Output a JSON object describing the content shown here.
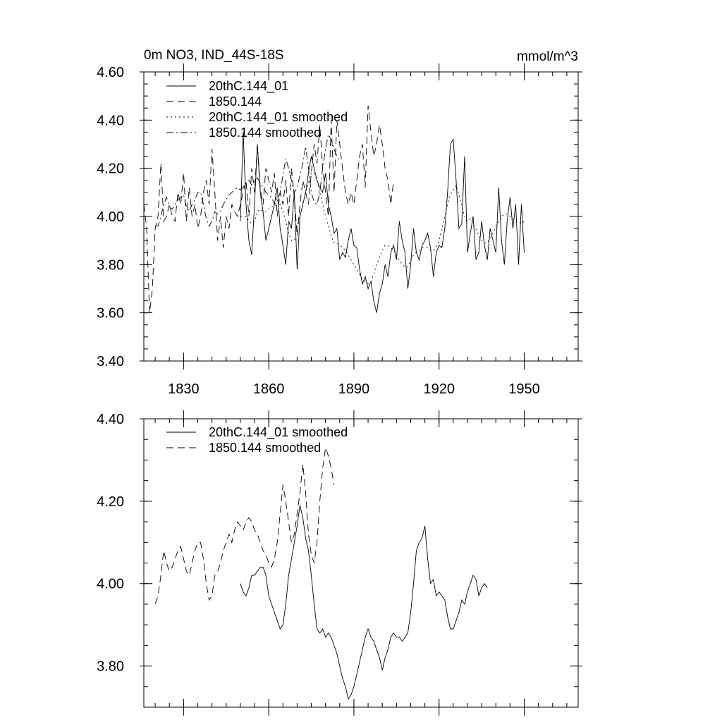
{
  "figure": {
    "title_left": "0m NO3, IND_44S-18S",
    "title_right": "mmol/m^3"
  },
  "chart_data": [
    {
      "type": "line",
      "title": "0m NO3, IND_44S-18S",
      "units": "mmol/m^3",
      "xlim": [
        1816,
        1969
      ],
      "ylim": [
        3.4,
        4.6
      ],
      "x_ticks": [
        1830,
        1860,
        1890,
        1920,
        1950
      ],
      "y_ticks": [
        3.4,
        3.6,
        3.8,
        4.0,
        4.2,
        4.4,
        4.6
      ],
      "y_tick_labels": [
        "3.40",
        "3.60",
        "3.80",
        "4.00",
        "4.20",
        "4.40",
        "4.60"
      ],
      "legend": "top-left",
      "grid": false,
      "series": [
        {
          "name": "20thC.144_01",
          "style": "solid",
          "x_start": 1850,
          "values": [
            3.98,
            4.35,
            4.05,
            3.9,
            3.84,
            4.05,
            4.3,
            4.1,
            4.02,
            3.9,
            3.95,
            4.0,
            4.05,
            4.12,
            3.95,
            3.88,
            3.8,
            3.98,
            3.95,
            4.1,
            3.78,
            4.0,
            4.05,
            4.1,
            4.18,
            4.25,
            4.2,
            4.15,
            4.12,
            4.1,
            4.18,
            4.05,
            4.0,
            3.93,
            3.95,
            3.82,
            3.85,
            3.83,
            3.9,
            3.95,
            3.88,
            3.87,
            3.78,
            3.72,
            3.75,
            3.7,
            3.73,
            3.65,
            3.6,
            3.68,
            3.72,
            3.8,
            3.75,
            3.85,
            3.88,
            3.82,
            3.98,
            3.9,
            3.85,
            3.7,
            3.8,
            3.95,
            3.85,
            3.82,
            3.88,
            3.9,
            3.93,
            3.87,
            3.75,
            3.85,
            3.88,
            3.87,
            3.95,
            4.1,
            4.3,
            4.32,
            4.15,
            3.95,
            3.97,
            4.25,
            3.85,
            3.93,
            4.0,
            3.82,
            3.85,
            3.98,
            3.88,
            3.82,
            3.95,
            3.9,
            3.85,
            4.12,
            3.9,
            3.8,
            3.98,
            4.08,
            3.95,
            4.05,
            3.8,
            4.05,
            3.85
          ]
        },
        {
          "name": "1850.144",
          "style": "dashed",
          "x_start": 1816,
          "values": [
            4.05,
            3.95,
            3.6,
            3.7,
            3.95,
            4.0,
            4.22,
            3.98,
            4.0,
            4.05,
            4.0,
            3.98,
            4.1,
            4.05,
            4.18,
            3.98,
            4.12,
            4.0,
            4.05,
            3.95,
            4.0,
            4.1,
            4.15,
            4.05,
            4.28,
            4.1,
            3.9,
            4.0,
            3.87,
            4.0,
            3.95,
            4.05,
            4.02,
            4.0,
            4.05,
            4.1,
            4.15,
            4.0,
            4.2,
            4.1,
            4.3,
            4.12,
            4.05,
            4.2,
            4.15,
            4.1,
            4.18,
            4.0,
            4.1,
            4.05,
            4.15,
            4.0,
            4.2,
            4.08,
            3.92,
            4.05,
            4.15,
            4.1,
            4.05,
            4.18,
            4.3,
            4.22,
            4.38,
            4.2,
            4.1,
            4.0,
            4.4,
            4.1,
            4.4,
            4.3,
            4.2,
            4.1,
            4.05,
            4.1,
            4.05,
            4.15,
            4.25,
            4.3,
            4.12,
            4.46,
            4.35,
            4.25,
            4.3,
            4.38,
            4.3,
            4.2,
            4.15,
            4.05,
            4.15
          ]
        },
        {
          "name": "20thC.144_01 smoothed",
          "style": "dotted",
          "x_start": 1850,
          "values": [
            4.0,
            4.0,
            4.0,
            3.98,
            3.97,
            3.98,
            4.02,
            4.03,
            4.02,
            4.02,
            4.03,
            4.04,
            4.04,
            4.05,
            4.05,
            4.02,
            3.98,
            3.93,
            3.9,
            3.9,
            3.94,
            4.0,
            4.05,
            4.1,
            4.14,
            4.18,
            4.18,
            4.15,
            4.1,
            4.05,
            4.0,
            3.96,
            3.92,
            3.89,
            3.89,
            3.88,
            3.87,
            3.86,
            3.84,
            3.82,
            3.8,
            3.78,
            3.76,
            3.74,
            3.73,
            3.72,
            3.73,
            3.76,
            3.8,
            3.83,
            3.86,
            3.88,
            3.88,
            3.87,
            3.86,
            3.84,
            3.82,
            3.8,
            3.79,
            3.79,
            3.82,
            3.84,
            3.85,
            3.86,
            3.87,
            3.87,
            3.87,
            3.86,
            3.86,
            3.87,
            3.9,
            3.95,
            4.0,
            4.05,
            4.09,
            4.11,
            4.13,
            4.09,
            4.04,
            4.0,
            3.98,
            3.99,
            3.97,
            3.95,
            3.92,
            3.9,
            3.89,
            3.89,
            3.91,
            3.93,
            3.96,
            3.98,
            4.0,
            4.01,
            4.01,
            4.0,
            3.99,
            3.98,
            3.98,
            3.97,
            3.98
          ]
        },
        {
          "name": "1850.144 smoothed",
          "style": "dashdot",
          "x_start": 1820,
          "values": [
            3.96,
            3.96,
            4.0,
            4.05,
            4.08,
            4.04,
            4.03,
            4.05,
            4.07,
            4.08,
            4.09,
            4.04,
            4.02,
            4.05,
            4.07,
            4.1,
            4.1,
            4.05,
            3.99,
            3.96,
            3.98,
            4.02,
            4.01,
            4.02,
            4.05,
            4.07,
            4.09,
            4.1,
            4.11,
            4.12,
            4.11,
            4.12,
            4.14,
            4.15,
            4.13,
            4.15,
            4.16,
            4.14,
            4.12,
            4.1,
            4.09,
            4.08,
            4.05,
            4.06,
            4.1,
            4.17,
            4.24,
            4.2,
            4.15,
            4.1,
            4.12,
            4.17,
            4.22,
            4.29,
            4.2,
            4.1,
            4.06,
            4.05,
            4.1,
            4.2,
            4.28,
            4.34,
            4.32,
            4.28,
            4.25,
            4.23
          ]
        }
      ]
    },
    {
      "type": "line",
      "xlim": [
        1816,
        1969
      ],
      "ylim": [
        3.7,
        4.4
      ],
      "x_ticks": [
        1830,
        1860,
        1890,
        1920,
        1950
      ],
      "y_ticks": [
        3.8,
        4.0,
        4.2,
        4.4
      ],
      "y_tick_labels": [
        "3.80",
        "4.00",
        "4.20",
        "4.40"
      ],
      "legend": "top-left",
      "grid": false,
      "series": [
        {
          "name": "20thC.144_01 smoothed",
          "style": "solid",
          "x_start": 1850,
          "values": [
            4.0,
            3.98,
            3.97,
            3.99,
            4.02,
            4.02,
            4.03,
            4.04,
            4.04,
            4.02,
            3.97,
            3.95,
            3.93,
            3.91,
            3.89,
            3.9,
            3.95,
            4.02,
            4.06,
            4.1,
            4.14,
            4.19,
            4.16,
            4.11,
            4.08,
            4.02,
            3.95,
            3.89,
            3.88,
            3.89,
            3.87,
            3.88,
            3.87,
            3.85,
            3.83,
            3.8,
            3.77,
            3.75,
            3.72,
            3.73,
            3.75,
            3.78,
            3.81,
            3.84,
            3.87,
            3.89,
            3.87,
            3.86,
            3.84,
            3.82,
            3.79,
            3.82,
            3.84,
            3.87,
            3.88,
            3.87,
            3.87,
            3.86,
            3.87,
            3.88,
            3.93,
            4.0,
            4.08,
            4.1,
            4.11,
            4.14,
            4.06,
            4.0,
            4.01,
            3.97,
            3.98,
            3.97,
            3.96,
            3.92,
            3.89,
            3.89,
            3.91,
            3.93,
            3.96,
            3.95,
            3.98,
            4.0,
            4.02,
            4.01,
            3.97,
            3.99,
            4.0,
            3.99
          ]
        },
        {
          "name": "1850.144 smoothed",
          "style": "dashed",
          "x_start": 1820,
          "values": [
            3.95,
            3.97,
            4.02,
            4.08,
            4.05,
            4.03,
            4.04,
            4.06,
            4.08,
            4.09,
            4.06,
            4.03,
            4.02,
            4.05,
            4.08,
            4.1,
            4.1,
            4.06,
            4.0,
            3.96,
            3.97,
            4.02,
            4.03,
            4.05,
            4.08,
            4.1,
            4.12,
            4.1,
            4.13,
            4.15,
            4.14,
            4.13,
            4.15,
            4.16,
            4.15,
            4.13,
            4.12,
            4.1,
            4.08,
            4.07,
            4.05,
            4.04,
            4.06,
            4.1,
            4.17,
            4.24,
            4.2,
            4.15,
            4.1,
            4.12,
            4.17,
            4.22,
            4.29,
            4.22,
            4.12,
            4.07,
            4.05,
            4.1,
            4.2,
            4.28,
            4.33,
            4.31,
            4.28,
            4.24
          ]
        }
      ]
    }
  ]
}
